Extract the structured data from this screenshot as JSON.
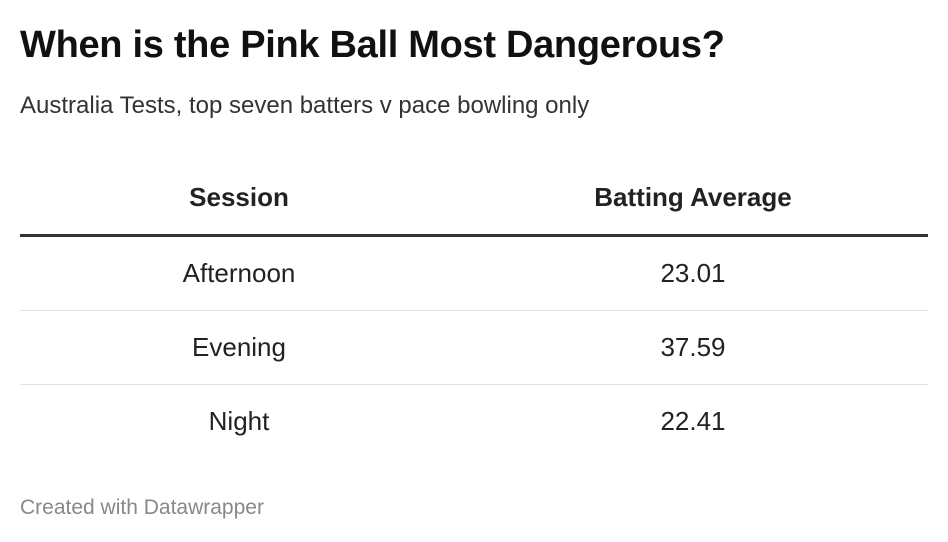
{
  "title": "When is the Pink Ball Most Dangerous?",
  "subtitle": "Australia Tests, top seven batters v pace bowling only",
  "footer": "Created with Datawrapper",
  "chart_data": {
    "type": "table",
    "columns": [
      "Session",
      "Batting Average"
    ],
    "rows": [
      {
        "session": "Afternoon",
        "average": "23.01"
      },
      {
        "session": "Evening",
        "average": "37.59"
      },
      {
        "session": "Night",
        "average": "22.41"
      }
    ]
  }
}
